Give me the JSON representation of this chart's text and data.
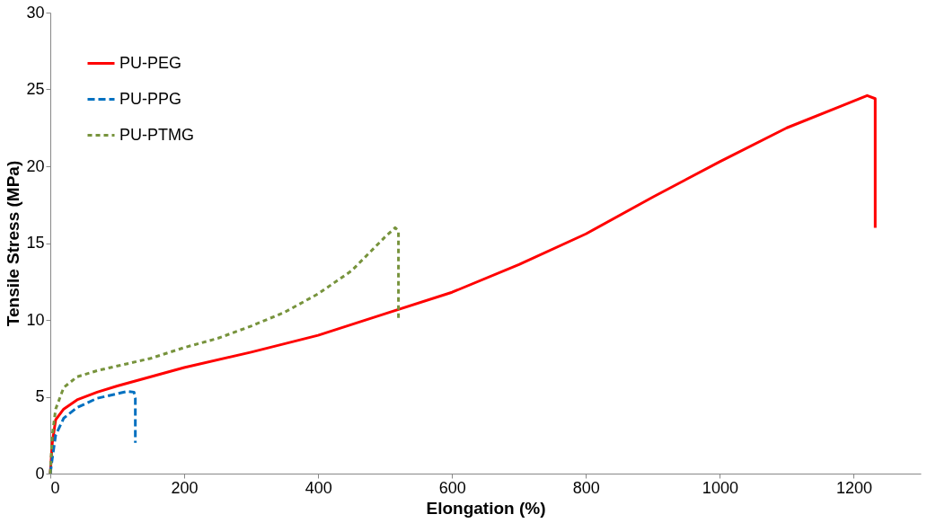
{
  "chart_data": {
    "type": "line",
    "xlabel": "Elongation (%)",
    "ylabel": "Tensile Stress (MPa)",
    "xlim": [
      0,
      1300
    ],
    "xticks": [
      0,
      200,
      400,
      600,
      800,
      1000,
      1200
    ],
    "ylim": [
      0,
      30
    ],
    "yticks": [
      0,
      5,
      10,
      15,
      20,
      25,
      30
    ],
    "grid": false,
    "legend": "top left",
    "marker": "none",
    "series": [
      {
        "name": "PU-PEG",
        "color": "#ff0000",
        "line_style": "solid",
        "x": [
          0,
          3,
          8,
          20,
          40,
          70,
          100,
          150,
          200,
          300,
          400,
          500,
          600,
          700,
          800,
          900,
          1000,
          1100,
          1180,
          1220,
          1232,
          1232
        ],
        "values": [
          0,
          2,
          3.5,
          4.2,
          4.8,
          5.3,
          5.7,
          6.3,
          6.9,
          7.9,
          9.0,
          10.4,
          11.8,
          13.6,
          15.6,
          18.0,
          20.3,
          22.5,
          23.9,
          24.6,
          24.4,
          16.0
        ]
      },
      {
        "name": "PU-PPG",
        "color": "#0070c0",
        "line_style": "dashed",
        "x": [
          0,
          3,
          8,
          20,
          40,
          70,
          100,
          115,
          125,
          127,
          127
        ],
        "values": [
          0,
          1,
          2.5,
          3.6,
          4.3,
          4.9,
          5.2,
          5.35,
          5.3,
          4.9,
          2.0
        ]
      },
      {
        "name": "PU-PTMG",
        "color": "#77933c",
        "line_style": "dotted",
        "x": [
          0,
          3,
          8,
          20,
          40,
          70,
          100,
          150,
          200,
          250,
          300,
          350,
          400,
          450,
          500,
          515,
          520,
          520
        ],
        "values": [
          0,
          2.5,
          4.2,
          5.6,
          6.3,
          6.7,
          7.0,
          7.5,
          8.2,
          8.8,
          9.6,
          10.5,
          11.7,
          13.2,
          15.4,
          16.0,
          15.8,
          10.0
        ]
      }
    ]
  }
}
